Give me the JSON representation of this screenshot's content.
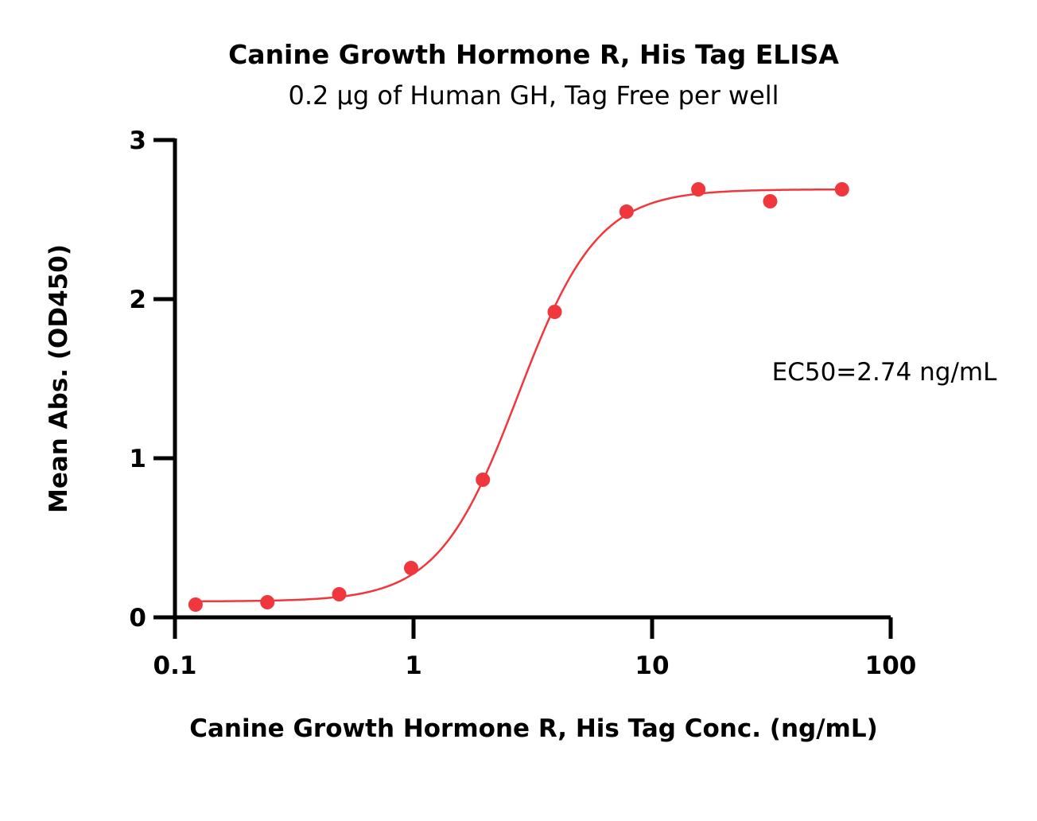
{
  "chart_data": {
    "type": "scatter",
    "title": "Canine Growth Hormone R, His Tag ELISA",
    "subtitle": "0.2 µg of Human GH, Tag Free per well",
    "xlabel": "Canine Growth Hormone R, His Tag Conc. (ng/mL)",
    "ylabel": "Mean Abs. (OD450)",
    "x_scale": "log",
    "xlim": [
      0.1,
      100
    ],
    "ylim": [
      0,
      3
    ],
    "x_ticks": [
      0.1,
      1,
      10,
      100
    ],
    "x_tick_labels": [
      "0.1",
      "1",
      "10",
      "100"
    ],
    "y_ticks": [
      0,
      1,
      2,
      3
    ],
    "y_tick_labels": [
      "0",
      "1",
      "2",
      "3"
    ],
    "grid": false,
    "annotation": "EC50=2.74 ng/mL",
    "color": "#f0373e",
    "series": [
      {
        "x": [
          0.122,
          0.244,
          0.488,
          0.977,
          1.953,
          3.906,
          7.813,
          15.625,
          31.25,
          62.5
        ],
        "values": [
          0.08,
          0.095,
          0.145,
          0.31,
          0.865,
          1.92,
          2.55,
          2.69,
          2.615,
          2.69
        ]
      }
    ],
    "fit": {
      "model": "4PL",
      "bottom": 0.1,
      "top": 2.69,
      "ec50": 2.74,
      "hill": 2.6
    }
  }
}
